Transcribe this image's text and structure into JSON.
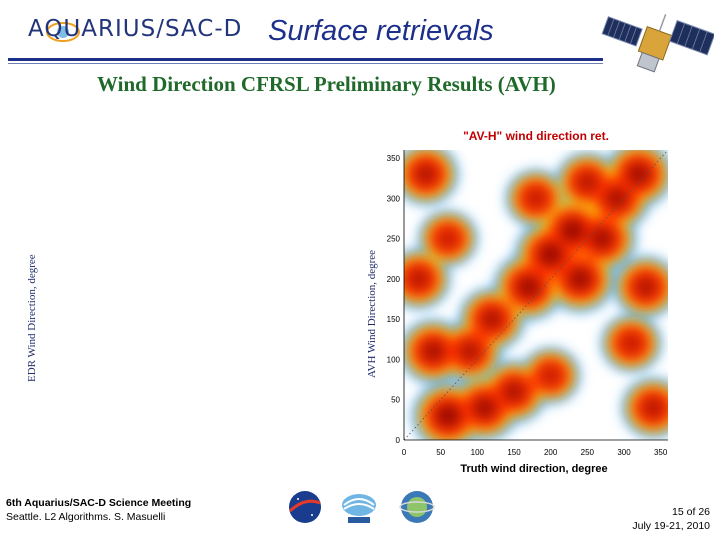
{
  "header": {
    "logo_text": "AQUARIUS/SAC-D",
    "title": "Surface retrievals"
  },
  "slide": {
    "subtitle": "Wind Direction CFRSL Preliminary Results (AVH)",
    "edr_axis_label": "EDR Wind Direction, degree",
    "avh_axis_label": "AVH Wind Direction, degree"
  },
  "chart_data": {
    "type": "heatmap",
    "title": "\"AV-H\" wind direction ret.",
    "xlabel": "Truth wind direction, degree",
    "ylabel": "",
    "xlim": [
      0,
      360
    ],
    "ylim": [
      0,
      360
    ],
    "x_ticks": [
      "0",
      "50",
      "100",
      "150",
      "200",
      "250",
      "300",
      "350"
    ],
    "y_ticks": [
      "0",
      "50",
      "100",
      "150",
      "200",
      "250",
      "300",
      "350"
    ],
    "grid": false,
    "colors": {
      "high": "#8b0000",
      "mid": "#ff2a00",
      "low": "#ffd200",
      "edge": "#3fa0ff",
      "empty": "#ffffff"
    },
    "reference_line": "diagonal dotted y = x",
    "density_regions": [
      {
        "x": 60,
        "y": 30,
        "level": 1.0
      },
      {
        "x": 110,
        "y": 40,
        "level": 0.9
      },
      {
        "x": 150,
        "y": 60,
        "level": 0.8
      },
      {
        "x": 40,
        "y": 110,
        "level": 0.85
      },
      {
        "x": 90,
        "y": 110,
        "level": 0.75
      },
      {
        "x": 120,
        "y": 150,
        "level": 0.8
      },
      {
        "x": 170,
        "y": 190,
        "level": 0.95
      },
      {
        "x": 200,
        "y": 230,
        "level": 1.0
      },
      {
        "x": 240,
        "y": 200,
        "level": 0.95
      },
      {
        "x": 230,
        "y": 260,
        "level": 1.0
      },
      {
        "x": 270,
        "y": 250,
        "level": 0.9
      },
      {
        "x": 290,
        "y": 300,
        "level": 0.85
      },
      {
        "x": 320,
        "y": 330,
        "level": 0.9
      },
      {
        "x": 250,
        "y": 320,
        "level": 0.7
      },
      {
        "x": 330,
        "y": 190,
        "level": 0.75
      },
      {
        "x": 310,
        "y": 120,
        "level": 0.6
      },
      {
        "x": 200,
        "y": 80,
        "level": 0.55
      },
      {
        "x": 20,
        "y": 200,
        "level": 0.7
      },
      {
        "x": 30,
        "y": 330,
        "level": 0.75
      },
      {
        "x": 340,
        "y": 40,
        "level": 0.7
      },
      {
        "x": 180,
        "y": 300,
        "level": 0.6
      },
      {
        "x": 60,
        "y": 250,
        "level": 0.55
      }
    ]
  },
  "footer": {
    "meeting": "6th Aquarius/SAC-D Science Meeting",
    "details": "Seattle. L2 Algorithms. S. Masuelli",
    "page": "15 of  26",
    "dates": "July 19-21, 2010"
  },
  "logos": [
    "nasa-logo",
    "conae-logo",
    "satellite-emblem-logo"
  ]
}
